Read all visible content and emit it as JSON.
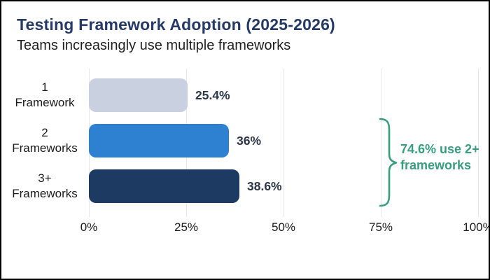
{
  "header": {
    "title": "Testing Framework Adoption (2025-2026)",
    "subtitle": "Teams increasingly use multiple frameworks"
  },
  "chart_data": {
    "type": "bar",
    "orientation": "horizontal",
    "title": "Testing Framework Adoption (2025-2026)",
    "subtitle": "Teams increasingly use multiple frameworks",
    "categories": [
      "1 Framework",
      "2 Frameworks",
      "3+ Frameworks"
    ],
    "category_labels": [
      "1\nFramework",
      "2\nFrameworks",
      "3+\nFrameworks"
    ],
    "values": [
      25.4,
      36,
      38.6
    ],
    "value_labels": [
      "25.4%",
      "36%",
      "38.6%"
    ],
    "bar_colors": [
      "#c9d0e0",
      "#2e81d0",
      "#1d3a63"
    ],
    "xlabel": "",
    "ylabel": "",
    "xlim": [
      0,
      100
    ],
    "x_ticks": [
      0,
      25,
      50,
      75,
      100
    ],
    "x_tick_labels": [
      "0%",
      "25%",
      "50%",
      "75%",
      "100%"
    ],
    "grid": true,
    "legend": false,
    "annotation": "74.6% use 2+ frameworks"
  },
  "annotation": {
    "line1": "74.6% use 2+",
    "line2": "frameworks",
    "color": "#389e7d"
  },
  "colors": {
    "title": "#253a66",
    "text": "#1c1c1c",
    "value_label": "#2d3748",
    "gridline": "#e7e7ea",
    "bar_1": "#c9d0e0",
    "bar_2": "#2e81d0",
    "bar_3": "#1d3a63",
    "annotation_green": "#389e7d",
    "background": "#ffffff",
    "border": "#000000"
  }
}
